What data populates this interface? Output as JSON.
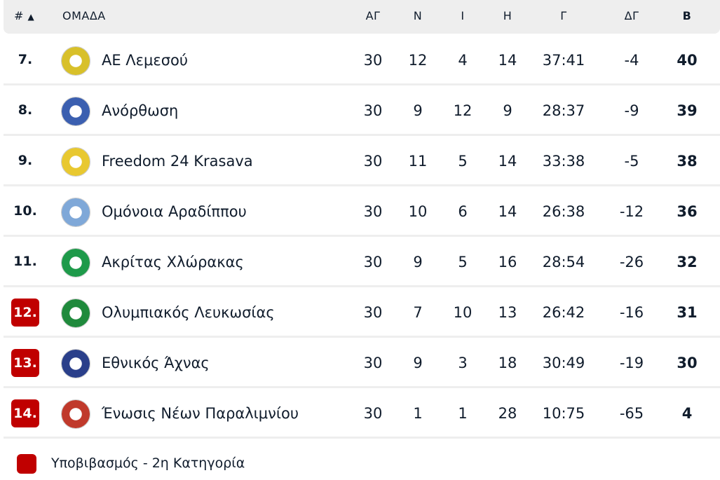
{
  "header": {
    "pos": "#",
    "sort_icon": "triangle-up",
    "team": "ΟΜΑΔΑ",
    "played": "ΑΓ",
    "won": "Ν",
    "drawn": "Ι",
    "lost": "Η",
    "goals": "Γ",
    "diff": "ΔΓ",
    "points": "Β"
  },
  "rows": [
    {
      "pos": "7.",
      "team": "ΑΕ Λεμεσού",
      "p": "30",
      "w": "12",
      "d": "4",
      "l": "14",
      "g": "37:41",
      "gd": "-4",
      "pts": "40",
      "relegation": false,
      "logo_color": "#d8c02a"
    },
    {
      "pos": "8.",
      "team": "Ανόρθωση",
      "p": "30",
      "w": "9",
      "d": "12",
      "l": "9",
      "g": "28:37",
      "gd": "-9",
      "pts": "39",
      "relegation": false,
      "logo_color": "#3b5fb0"
    },
    {
      "pos": "9.",
      "team": "Freedom 24 Krasava",
      "p": "30",
      "w": "11",
      "d": "5",
      "l": "14",
      "g": "33:38",
      "gd": "-5",
      "pts": "38",
      "relegation": false,
      "logo_color": "#e8c830"
    },
    {
      "pos": "10.",
      "team": "Ομόνοια Αραδίππου",
      "p": "30",
      "w": "10",
      "d": "6",
      "l": "14",
      "g": "26:38",
      "gd": "-12",
      "pts": "36",
      "relegation": false,
      "logo_color": "#7fa8d8"
    },
    {
      "pos": "11.",
      "team": "Ακρίτας Χλώρακας",
      "p": "30",
      "w": "9",
      "d": "5",
      "l": "16",
      "g": "28:54",
      "gd": "-26",
      "pts": "32",
      "relegation": false,
      "logo_color": "#1e9a4a"
    },
    {
      "pos": "12.",
      "team": "Ολυμπιακός Λευκωσίας",
      "p": "30",
      "w": "7",
      "d": "10",
      "l": "13",
      "g": "26:42",
      "gd": "-16",
      "pts": "31",
      "relegation": true,
      "logo_color": "#1f8a3c"
    },
    {
      "pos": "13.",
      "team": "Εθνικός Άχνας",
      "p": "30",
      "w": "9",
      "d": "3",
      "l": "18",
      "g": "30:49",
      "gd": "-19",
      "pts": "30",
      "relegation": true,
      "logo_color": "#2a3f8a"
    },
    {
      "pos": "14.",
      "team": "Ένωσις Νέων Παραλιμνίου",
      "p": "30",
      "w": "1",
      "d": "1",
      "l": "28",
      "g": "10:75",
      "gd": "-65",
      "pts": "4",
      "relegation": true,
      "logo_color": "#c0392b"
    }
  ],
  "legend": {
    "label": "Υποβιβασμός - 2η Κατηγορία",
    "color": "#c00000"
  }
}
